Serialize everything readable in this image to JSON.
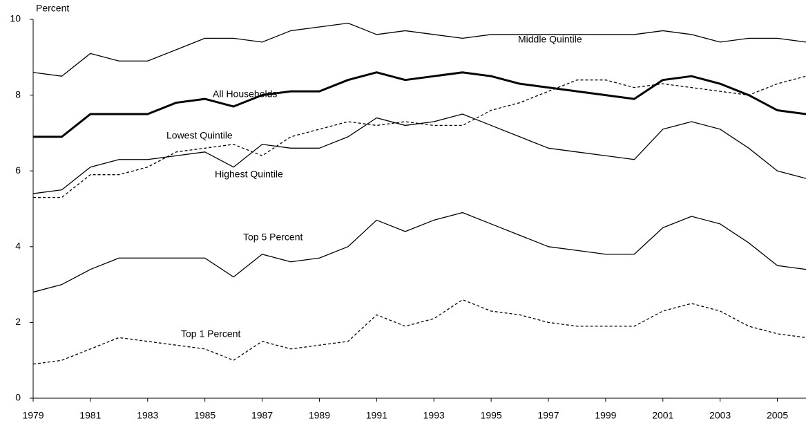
{
  "chart_data": {
    "type": "line",
    "y_label": "Percent",
    "x": [
      1979,
      1980,
      1981,
      1982,
      1983,
      1984,
      1985,
      1986,
      1987,
      1988,
      1989,
      1990,
      1991,
      1992,
      1993,
      1994,
      1995,
      1996,
      1997,
      1998,
      1999,
      2000,
      2001,
      2002,
      2003,
      2004,
      2005,
      2006
    ],
    "xlim": [
      1979,
      2006
    ],
    "xticks": [
      1979,
      1981,
      1983,
      1985,
      1987,
      1989,
      1991,
      1993,
      1995,
      1997,
      1999,
      2001,
      2003,
      2005
    ],
    "ylim": [
      0,
      10
    ],
    "yticks": [
      0,
      2,
      4,
      6,
      8,
      10
    ],
    "grid": false,
    "series": [
      {
        "name": "Middle Quintile",
        "color": "#000000",
        "style": "solid",
        "width": 1.3,
        "values": [
          8.6,
          8.5,
          9.1,
          8.9,
          8.9,
          9.2,
          9.5,
          9.5,
          9.4,
          9.7,
          9.8,
          9.9,
          9.6,
          9.7,
          9.6,
          9.5,
          9.6,
          9.6,
          9.6,
          9.6,
          9.6,
          9.6,
          9.7,
          9.6,
          9.4,
          9.5,
          9.5,
          9.4
        ]
      },
      {
        "name": "All Households",
        "color": "#000000",
        "style": "solid",
        "width": 3,
        "values": [
          6.9,
          6.9,
          7.5,
          7.5,
          7.5,
          7.8,
          7.9,
          7.7,
          8.0,
          8.1,
          8.1,
          8.4,
          8.6,
          8.4,
          8.5,
          8.6,
          8.5,
          8.3,
          8.2,
          8.1,
          8.0,
          7.9,
          8.4,
          8.5,
          8.3,
          8.0,
          7.6,
          7.5
        ]
      },
      {
        "name": "Lowest Quintile",
        "color": "#000000",
        "style": "dashed",
        "width": 1.3,
        "values": [
          5.3,
          5.3,
          5.9,
          5.9,
          6.1,
          6.5,
          6.6,
          6.7,
          6.4,
          6.9,
          7.1,
          7.3,
          7.2,
          7.3,
          7.2,
          7.2,
          7.6,
          7.8,
          8.1,
          8.4,
          8.4,
          8.2,
          8.3,
          8.2,
          8.1,
          8.0,
          8.3,
          8.5
        ]
      },
      {
        "name": "Highest Quintile",
        "color": "#000000",
        "style": "solid",
        "width": 1.3,
        "values": [
          5.4,
          5.5,
          6.1,
          6.3,
          6.3,
          6.4,
          6.5,
          6.1,
          6.7,
          6.6,
          6.6,
          6.9,
          7.4,
          7.2,
          7.3,
          7.5,
          7.2,
          6.9,
          6.6,
          6.5,
          6.4,
          6.3,
          7.1,
          7.3,
          7.1,
          6.6,
          6.0,
          5.8
        ]
      },
      {
        "name": "Top 5 Percent",
        "color": "#000000",
        "style": "solid",
        "width": 1.3,
        "values": [
          2.8,
          3.0,
          3.4,
          3.7,
          3.7,
          3.7,
          3.7,
          3.2,
          3.8,
          3.6,
          3.7,
          4.0,
          4.7,
          4.4,
          4.7,
          4.9,
          4.6,
          4.3,
          4.0,
          3.9,
          3.8,
          3.8,
          4.5,
          4.8,
          4.6,
          4.1,
          3.5,
          3.4
        ]
      },
      {
        "name": "Top 1 Percent",
        "color": "#000000",
        "style": "dashed",
        "width": 1.3,
        "values": [
          0.9,
          1.0,
          1.3,
          1.6,
          1.5,
          1.4,
          1.3,
          1.0,
          1.5,
          1.3,
          1.4,
          1.5,
          2.2,
          1.9,
          2.1,
          2.6,
          2.3,
          2.2,
          2.0,
          1.9,
          1.9,
          1.9,
          2.3,
          2.5,
          2.3,
          1.9,
          1.7,
          1.6
        ]
      }
    ]
  }
}
